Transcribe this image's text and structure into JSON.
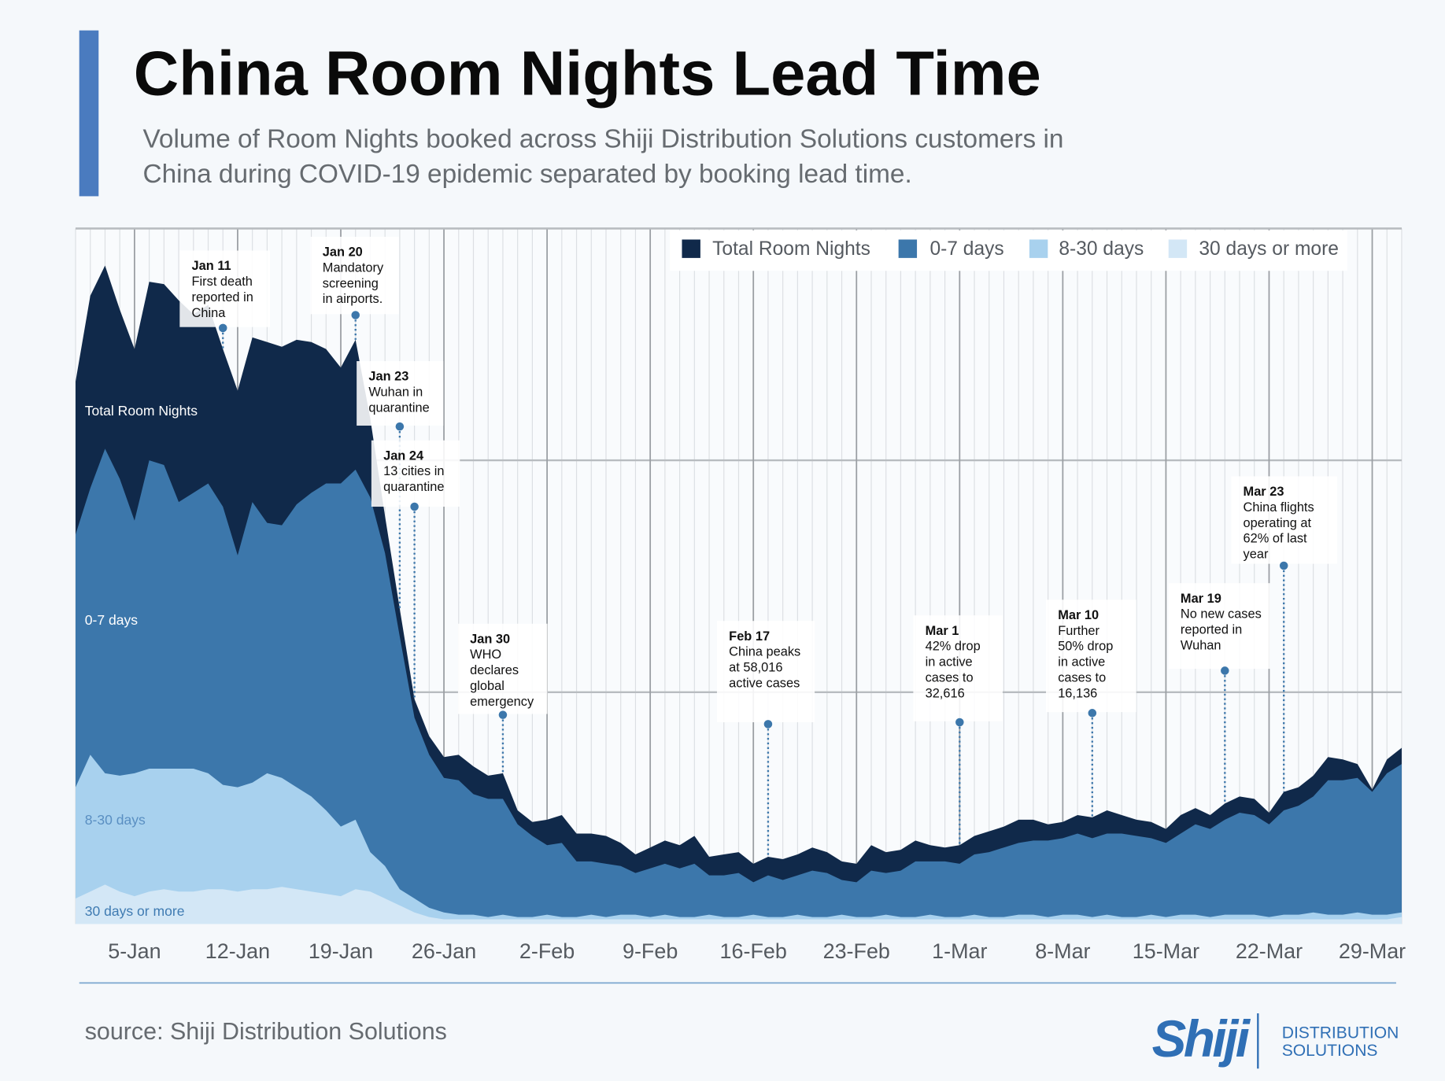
{
  "title": "China Room Nights Lead Time",
  "subtitle": [
    "Volume of Room Nights booked across Shiji Distribution Solutions customers in",
    "China during COVID-19 epidemic separated by booking lead time."
  ],
  "source": "source: Shiji Distribution Solutions",
  "logo": {
    "name": "Shiji",
    "tagline": [
      "DISTRIBUTION",
      "SOLUTIONS"
    ]
  },
  "chart_data": {
    "type": "area",
    "x": [
      1,
      2,
      3,
      4,
      5,
      6,
      7,
      8,
      9,
      10,
      11,
      12,
      13,
      14,
      15,
      16,
      17,
      18,
      19,
      20,
      21,
      22,
      23,
      24,
      25,
      26,
      27,
      28,
      29,
      30,
      31,
      32,
      33,
      34,
      35,
      36,
      37,
      38,
      39,
      40,
      41,
      42,
      43,
      44,
      45,
      46,
      47,
      48,
      49,
      50,
      51,
      52,
      53,
      54,
      55,
      56,
      57,
      58,
      59,
      60,
      61,
      62,
      63,
      64,
      65,
      66,
      67,
      68,
      69,
      70,
      71,
      72,
      73,
      74,
      75,
      76,
      77,
      78,
      79,
      80,
      81,
      82,
      83,
      84,
      85,
      86,
      87,
      88,
      89,
      90,
      91
    ],
    "xlim": [
      1,
      91
    ],
    "xticks": [
      {
        "value": 5,
        "label": "5-Jan"
      },
      {
        "value": 12,
        "label": "12-Jan"
      },
      {
        "value": 19,
        "label": "19-Jan"
      },
      {
        "value": 26,
        "label": "26-Jan"
      },
      {
        "value": 33,
        "label": "2-Feb"
      },
      {
        "value": 40,
        "label": "9-Feb"
      },
      {
        "value": 47,
        "label": "16-Feb"
      },
      {
        "value": 54,
        "label": "23-Feb"
      },
      {
        "value": 61,
        "label": "1-Mar"
      },
      {
        "value": 68,
        "label": "8-Mar"
      },
      {
        "value": 75,
        "label": "15-Mar"
      },
      {
        "value": 82,
        "label": "22-Mar"
      },
      {
        "value": 89,
        "label": "29-Mar"
      }
    ],
    "ylim": [
      0,
      300
    ],
    "ygrid": [
      100,
      200,
      300
    ],
    "legend": "top-right",
    "series": [
      {
        "name": "Total Room Nights",
        "color": "#10294a",
        "label_color": "#ffffff",
        "values": [
          234,
          271,
          284,
          265,
          248,
          277,
          276,
          269,
          263,
          267,
          248,
          230,
          253,
          251,
          249,
          252,
          251,
          248,
          240,
          252,
          218,
          176,
          136,
          97,
          81,
          72,
          73,
          68,
          64,
          65,
          49,
          44,
          45,
          47,
          39,
          39,
          38,
          35,
          30,
          33,
          36,
          34,
          38,
          29,
          30,
          31,
          26,
          29,
          28,
          30,
          33,
          31,
          27,
          26,
          34,
          31,
          32,
          36,
          34,
          33,
          34,
          38,
          40,
          42,
          45,
          45,
          43,
          44,
          47,
          46,
          49,
          47,
          45,
          44,
          41,
          47,
          50,
          47,
          52,
          55,
          54,
          48,
          57,
          59,
          64,
          72,
          71,
          69,
          58,
          71,
          76
        ]
      },
      {
        "name": "0-7 days",
        "color": "#3c77ab",
        "label_color": "#ffffff",
        "values": [
          168,
          188,
          205,
          192,
          174,
          200,
          198,
          182,
          186,
          190,
          180,
          159,
          182,
          173,
          172,
          181,
          186,
          190,
          190,
          196,
          184,
          160,
          124,
          89,
          73,
          63,
          62,
          56,
          54,
          54,
          43,
          38,
          34,
          35,
          27,
          27,
          26,
          25,
          22,
          24,
          26,
          24,
          26,
          21,
          21,
          22,
          18,
          21,
          19,
          21,
          23,
          22,
          19,
          18,
          23,
          22,
          23,
          27,
          27,
          27,
          26,
          30,
          31,
          33,
          35,
          36,
          36,
          37,
          39,
          37,
          39,
          39,
          38,
          37,
          35,
          39,
          43,
          41,
          45,
          48,
          47,
          43,
          49,
          51,
          55,
          62,
          62,
          63,
          57,
          65,
          69
        ]
      },
      {
        "name": "8-30 days",
        "color": "#a8d1ee",
        "label_color": "#5a8fc2",
        "values": [
          59,
          73,
          65,
          64,
          65,
          67,
          67,
          67,
          67,
          65,
          60,
          59,
          61,
          65,
          63,
          59,
          55,
          49,
          42,
          45,
          31,
          25,
          15,
          11,
          7,
          5,
          4,
          4,
          3,
          4,
          3,
          3,
          4,
          3,
          3,
          4,
          3,
          4,
          4,
          3,
          4,
          3,
          3,
          4,
          3,
          3,
          4,
          3,
          3,
          4,
          3,
          3,
          4,
          3,
          3,
          4,
          3,
          3,
          4,
          3,
          3,
          4,
          3,
          3,
          4,
          4,
          3,
          4,
          4,
          3,
          4,
          3,
          3,
          4,
          3,
          4,
          4,
          3,
          4,
          4,
          4,
          3,
          4,
          4,
          5,
          4,
          4,
          5,
          4,
          4,
          5
        ]
      },
      {
        "name": "30 days or more",
        "color": "#d3e7f6",
        "label_color": "#3f7bb2",
        "values": [
          11,
          14,
          17,
          14,
          12,
          14,
          15,
          14,
          14,
          15,
          15,
          14,
          15,
          15,
          16,
          15,
          14,
          13,
          12,
          15,
          14,
          11,
          8,
          5,
          3,
          2,
          2,
          2,
          2,
          2,
          2,
          2,
          2,
          2,
          2,
          2,
          2,
          2,
          2,
          2,
          2,
          2,
          2,
          2,
          2,
          2,
          2,
          2,
          2,
          2,
          2,
          2,
          2,
          2,
          2,
          2,
          2,
          2,
          2,
          2,
          2,
          2,
          2,
          2,
          2,
          2,
          2,
          2,
          2,
          2,
          2,
          2,
          2,
          2,
          2,
          2,
          2,
          2,
          2,
          2,
          2,
          2,
          2,
          2,
          2,
          2,
          2,
          2,
          2,
          2,
          3
        ]
      }
    ],
    "annotations": [
      {
        "x": 11,
        "date": "Jan 11",
        "lines": [
          "First death",
          "reported in",
          "China"
        ]
      },
      {
        "x": 20,
        "date": "Jan 20",
        "lines": [
          "Mandatory",
          "screening",
          "in airports."
        ]
      },
      {
        "x": 23,
        "date": "Jan 23",
        "lines": [
          "Wuhan in",
          "quarantine"
        ]
      },
      {
        "x": 24,
        "date": "Jan 24",
        "lines": [
          "13 cities in",
          "quarantine"
        ]
      },
      {
        "x": 30,
        "date": "Jan 30",
        "lines": [
          "WHO",
          "declares",
          "global",
          "emergency"
        ]
      },
      {
        "x": 48,
        "date": "Feb 17",
        "lines": [
          "China peaks",
          "at 58,016",
          "active cases"
        ]
      },
      {
        "x": 61,
        "date": "Mar 1",
        "lines": [
          "42% drop",
          "in active",
          "cases to",
          "32,616"
        ]
      },
      {
        "x": 70,
        "date": "Mar 10",
        "lines": [
          "Further",
          "50% drop",
          "in active",
          "cases to",
          "16,136"
        ]
      },
      {
        "x": 79,
        "date": "Mar 19",
        "lines": [
          "No new cases",
          "reported in",
          "Wuhan"
        ]
      },
      {
        "x": 83,
        "date": "Mar 23",
        "lines": [
          "China flights",
          "operating at",
          "62% of last",
          "year"
        ]
      }
    ]
  }
}
